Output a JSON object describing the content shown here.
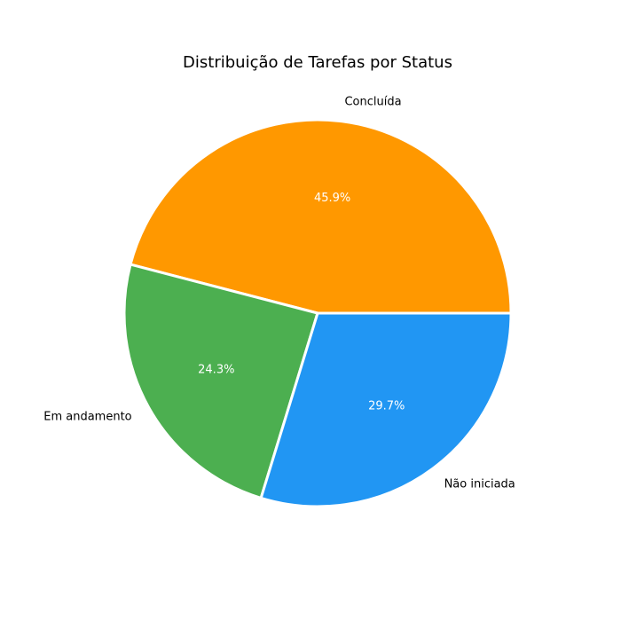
{
  "chart_data": {
    "type": "pie",
    "title": "Distribuição de Tarefas por Status",
    "start_angle_deg": 0,
    "direction": "counterclockwise",
    "slices": [
      {
        "label": "Concluída",
        "value": 45.9,
        "pct_label": "45.9%",
        "color": "#FF9800"
      },
      {
        "label": "Em andamento",
        "value": 24.3,
        "pct_label": "24.3%",
        "color": "#4CAF50"
      },
      {
        "label": "Não iniciada",
        "value": 29.7,
        "pct_label": "29.7%",
        "color": "#2196F3"
      }
    ],
    "edge_color": "#FFFFFF",
    "legend": "none"
  }
}
